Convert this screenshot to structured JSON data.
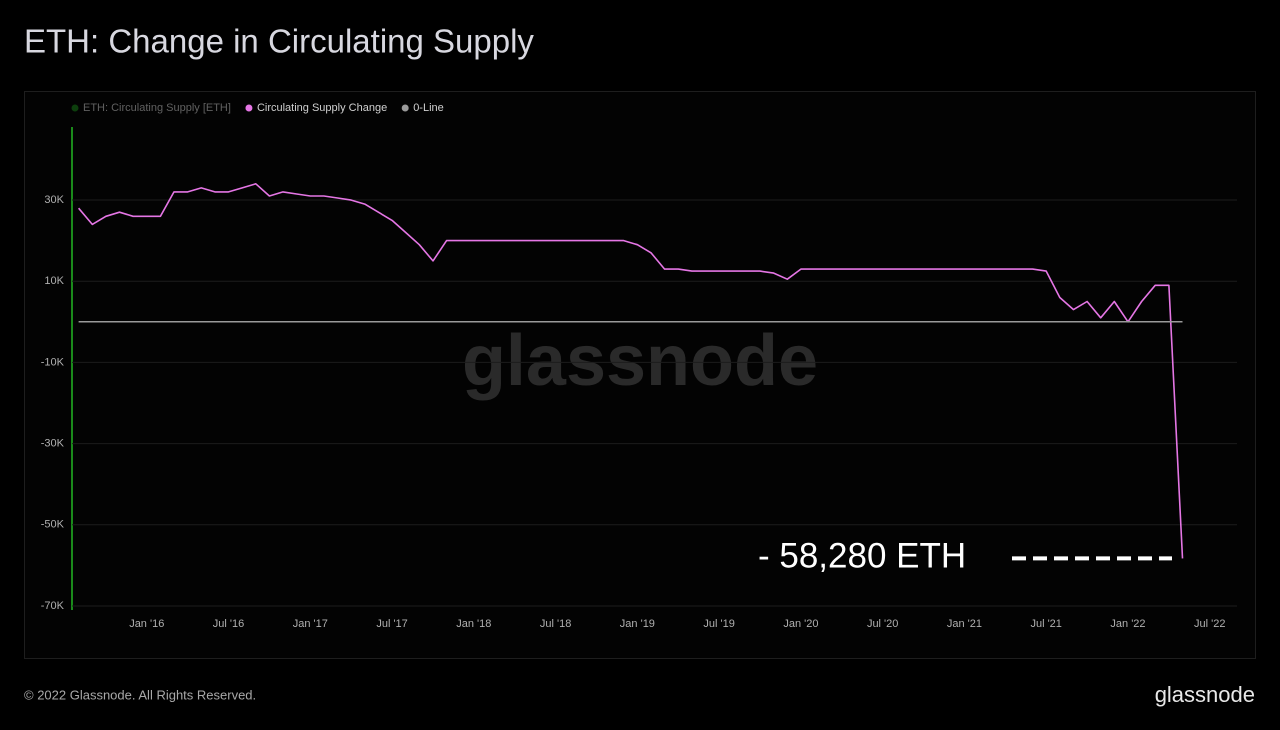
{
  "chart_data": {
    "type": "line",
    "title": "ETH: Change in Circulating Supply",
    "x": [
      "2015-08",
      "2015-09",
      "2015-10",
      "2015-11",
      "2015-12",
      "2016-01",
      "2016-02",
      "2016-03",
      "2016-04",
      "2016-05",
      "2016-06",
      "2016-07",
      "2016-08",
      "2016-09",
      "2016-10",
      "2016-11",
      "2016-12",
      "2017-01",
      "2017-02",
      "2017-03",
      "2017-04",
      "2017-05",
      "2017-06",
      "2017-07",
      "2017-08",
      "2017-09",
      "2017-10",
      "2017-11",
      "2017-12",
      "2018-01",
      "2018-02",
      "2018-03",
      "2018-04",
      "2018-05",
      "2018-06",
      "2018-07",
      "2018-08",
      "2018-09",
      "2018-10",
      "2018-11",
      "2018-12",
      "2019-01",
      "2019-02",
      "2019-03",
      "2019-04",
      "2019-05",
      "2019-06",
      "2019-07",
      "2019-08",
      "2019-09",
      "2019-10",
      "2019-11",
      "2019-12",
      "2020-01",
      "2020-02",
      "2020-03",
      "2020-04",
      "2020-05",
      "2020-06",
      "2020-07",
      "2020-08",
      "2020-09",
      "2020-10",
      "2020-11",
      "2020-12",
      "2021-01",
      "2021-02",
      "2021-03",
      "2021-04",
      "2021-05",
      "2021-06",
      "2021-07",
      "2021-08",
      "2021-09",
      "2021-10",
      "2021-11",
      "2021-12",
      "2022-01",
      "2022-02",
      "2022-03",
      "2022-04",
      "2022-05"
    ],
    "series": [
      {
        "name": "ETH: Circulating Supply [ETH]",
        "color": "#1a8a1a",
        "hidden": true,
        "values": [
          null,
          null,
          null,
          null,
          null,
          null,
          null,
          null,
          null,
          null,
          null,
          null,
          null,
          null,
          null,
          null,
          null,
          null,
          null,
          null,
          null,
          null,
          null,
          null,
          null,
          null,
          null,
          null,
          null,
          null,
          null,
          null,
          null,
          null,
          null,
          null,
          null,
          null,
          null,
          null,
          null,
          null,
          null,
          null,
          null,
          null,
          null,
          null,
          null,
          null,
          null,
          null,
          null,
          null,
          null,
          null,
          null,
          null,
          null,
          null,
          null,
          null,
          null,
          null,
          null,
          null,
          null,
          null,
          null,
          null,
          null,
          null,
          null,
          null,
          null,
          null,
          null,
          null,
          null,
          null,
          null,
          null
        ]
      },
      {
        "name": "Circulating Supply Change",
        "color": "#e576e5",
        "values": [
          28000,
          24000,
          26000,
          27000,
          26000,
          26000,
          26000,
          32000,
          32000,
          33000,
          32000,
          32000,
          33000,
          34000,
          31000,
          32000,
          31500,
          31000,
          31000,
          30500,
          30000,
          29000,
          27000,
          25000,
          22000,
          19000,
          15000,
          20000,
          20000,
          20000,
          20000,
          20000,
          20000,
          20000,
          20000,
          20000,
          20000,
          20000,
          20000,
          20000,
          20000,
          19000,
          17000,
          13000,
          13000,
          12500,
          12500,
          12500,
          12500,
          12500,
          12500,
          12000,
          10500,
          13000,
          13000,
          13000,
          13000,
          13000,
          13000,
          13000,
          13000,
          13000,
          13000,
          13000,
          13000,
          13000,
          13000,
          13000,
          13000,
          13000,
          13000,
          12500,
          6000,
          3000,
          5000,
          1000,
          5000,
          0,
          5000,
          9000,
          9000,
          -58280
        ]
      },
      {
        "name": "0-Line",
        "color": "#9a9a9a",
        "values": [
          0,
          0,
          0,
          0,
          0,
          0,
          0,
          0,
          0,
          0,
          0,
          0,
          0,
          0,
          0,
          0,
          0,
          0,
          0,
          0,
          0,
          0,
          0,
          0,
          0,
          0,
          0,
          0,
          0,
          0,
          0,
          0,
          0,
          0,
          0,
          0,
          0,
          0,
          0,
          0,
          0,
          0,
          0,
          0,
          0,
          0,
          0,
          0,
          0,
          0,
          0,
          0,
          0,
          0,
          0,
          0,
          0,
          0,
          0,
          0,
          0,
          0,
          0,
          0,
          0,
          0,
          0,
          0,
          0,
          0,
          0,
          0,
          0,
          0,
          0,
          0,
          0,
          0,
          0,
          0,
          0,
          0
        ]
      }
    ],
    "xlim": [
      "2015-07",
      "2022-09"
    ],
    "xticks": [
      {
        "value": "2016-01",
        "label": "Jan '16"
      },
      {
        "value": "2016-07",
        "label": "Jul '16"
      },
      {
        "value": "2017-01",
        "label": "Jan '17"
      },
      {
        "value": "2017-07",
        "label": "Jul '17"
      },
      {
        "value": "2018-01",
        "label": "Jan '18"
      },
      {
        "value": "2018-07",
        "label": "Jul '18"
      },
      {
        "value": "2019-01",
        "label": "Jan '19"
      },
      {
        "value": "2019-07",
        "label": "Jul '19"
      },
      {
        "value": "2020-01",
        "label": "Jan '20"
      },
      {
        "value": "2020-07",
        "label": "Jul '20"
      },
      {
        "value": "2021-01",
        "label": "Jan '21"
      },
      {
        "value": "2021-07",
        "label": "Jul '21"
      },
      {
        "value": "2022-01",
        "label": "Jan '22"
      },
      {
        "value": "2022-07",
        "label": "Jul '22"
      }
    ],
    "ylim": [
      -71000,
      48000
    ],
    "yticks": [
      {
        "value": -70000,
        "label": "-70K"
      },
      {
        "value": -50000,
        "label": "-50K"
      },
      {
        "value": -30000,
        "label": "-30K"
      },
      {
        "value": -10000,
        "label": "-10K"
      },
      {
        "value": 10000,
        "label": "10K"
      },
      {
        "value": 30000,
        "label": "30K"
      }
    ],
    "grid": true,
    "annotation": {
      "text": "- 58,280 ETH",
      "value": -58280
    },
    "watermark": "glassnode",
    "footer": "© 2022 Glassnode. All Rights Reserved.",
    "logo": "glassnode"
  }
}
